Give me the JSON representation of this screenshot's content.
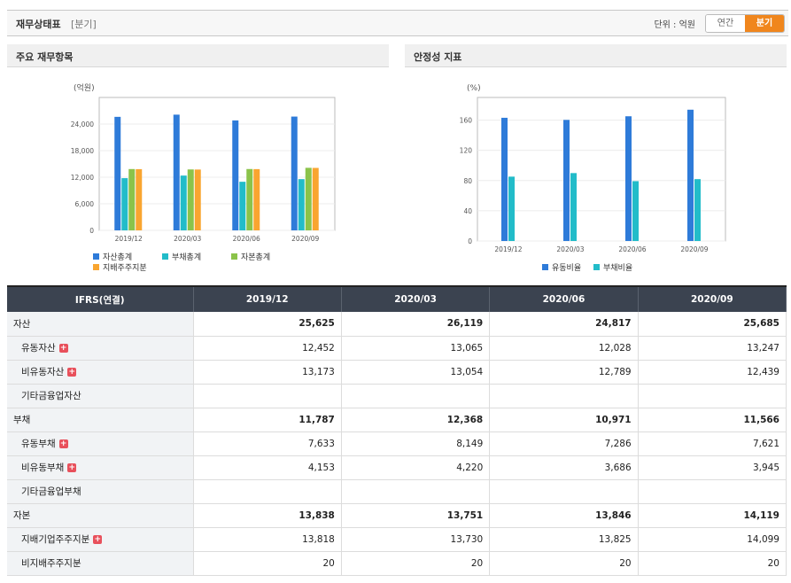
{
  "header": {
    "title": "재무상태표",
    "period_tag": "[분기]",
    "unit_label": "단위 : 억원",
    "toggle_annual": "연간",
    "toggle_quarter": "분기"
  },
  "left_panel": {
    "title": "주요 재무항목"
  },
  "right_panel": {
    "title": "안정성 지표"
  },
  "colors": {
    "blue": "#2e7bd9",
    "cyan": "#22bcc9",
    "green": "#8bc34a",
    "orange": "#f9a530",
    "header_bg": "#3b4350",
    "accent": "#f0861d"
  },
  "chart_data": [
    {
      "type": "bar",
      "title": "",
      "ylabel": "(억원)",
      "categories": [
        "2019/12",
        "2020/03",
        "2020/06",
        "2020/09"
      ],
      "ylim": [
        0,
        30000
      ],
      "yticks": [
        0,
        6000,
        12000,
        18000,
        24000
      ],
      "ytick_labels": [
        "0",
        "6,000",
        "12,000",
        "18,000",
        "24,000"
      ],
      "grid": true,
      "series": [
        {
          "name": "자산총계",
          "color": "#2e7bd9",
          "values": [
            25625,
            26119,
            24817,
            25685
          ]
        },
        {
          "name": "부채총계",
          "color": "#22bcc9",
          "values": [
            11787,
            12368,
            10971,
            11566
          ]
        },
        {
          "name": "자본총계",
          "color": "#8bc34a",
          "values": [
            13838,
            13751,
            13846,
            14119
          ]
        },
        {
          "name": "지배주주지분",
          "color": "#f9a530",
          "values": [
            13818,
            13730,
            13825,
            14099
          ]
        }
      ]
    },
    {
      "type": "bar",
      "title": "",
      "ylabel": "(%)",
      "categories": [
        "2019/12",
        "2020/03",
        "2020/06",
        "2020/09"
      ],
      "ylim": [
        0,
        190
      ],
      "yticks": [
        0,
        40,
        80,
        120,
        160
      ],
      "ytick_labels": [
        "0",
        "40",
        "80",
        "120",
        "160"
      ],
      "grid": true,
      "series": [
        {
          "name": "유동비율",
          "color": "#2e7bd9",
          "values": [
            163.1,
            160.3,
            165.1,
            173.8
          ]
        },
        {
          "name": "부채비율",
          "color": "#22bcc9",
          "values": [
            85.2,
            89.9,
            79.2,
            81.9
          ]
        }
      ]
    }
  ],
  "table": {
    "header": [
      "IFRS(연결)",
      "2019/12",
      "2020/03",
      "2020/06",
      "2020/09"
    ],
    "rows": [
      {
        "label": "자산",
        "bold": true,
        "child": false,
        "plus": false,
        "values": [
          "25,625",
          "26,119",
          "24,817",
          "25,685"
        ]
      },
      {
        "label": "유동자산",
        "bold": false,
        "child": true,
        "plus": true,
        "values": [
          "12,452",
          "13,065",
          "12,028",
          "13,247"
        ]
      },
      {
        "label": "비유동자산",
        "bold": false,
        "child": true,
        "plus": true,
        "values": [
          "13,173",
          "13,054",
          "12,789",
          "12,439"
        ]
      },
      {
        "label": "기타금융업자산",
        "bold": false,
        "child": true,
        "plus": false,
        "values": [
          "",
          "",
          "",
          ""
        ]
      },
      {
        "label": "부채",
        "bold": true,
        "child": false,
        "plus": false,
        "values": [
          "11,787",
          "12,368",
          "10,971",
          "11,566"
        ]
      },
      {
        "label": "유동부채",
        "bold": false,
        "child": true,
        "plus": true,
        "values": [
          "7,633",
          "8,149",
          "7,286",
          "7,621"
        ]
      },
      {
        "label": "비유동부채",
        "bold": false,
        "child": true,
        "plus": true,
        "values": [
          "4,153",
          "4,220",
          "3,686",
          "3,945"
        ]
      },
      {
        "label": "기타금융업부채",
        "bold": false,
        "child": true,
        "plus": false,
        "values": [
          "",
          "",
          "",
          ""
        ]
      },
      {
        "label": "자본",
        "bold": true,
        "child": false,
        "plus": false,
        "values": [
          "13,838",
          "13,751",
          "13,846",
          "14,119"
        ]
      },
      {
        "label": "지배기업주주지분",
        "bold": false,
        "child": true,
        "plus": true,
        "values": [
          "13,818",
          "13,730",
          "13,825",
          "14,099"
        ]
      },
      {
        "label": "비지배주주지분",
        "bold": false,
        "child": true,
        "plus": false,
        "values": [
          "20",
          "20",
          "20",
          "20"
        ]
      }
    ]
  }
}
